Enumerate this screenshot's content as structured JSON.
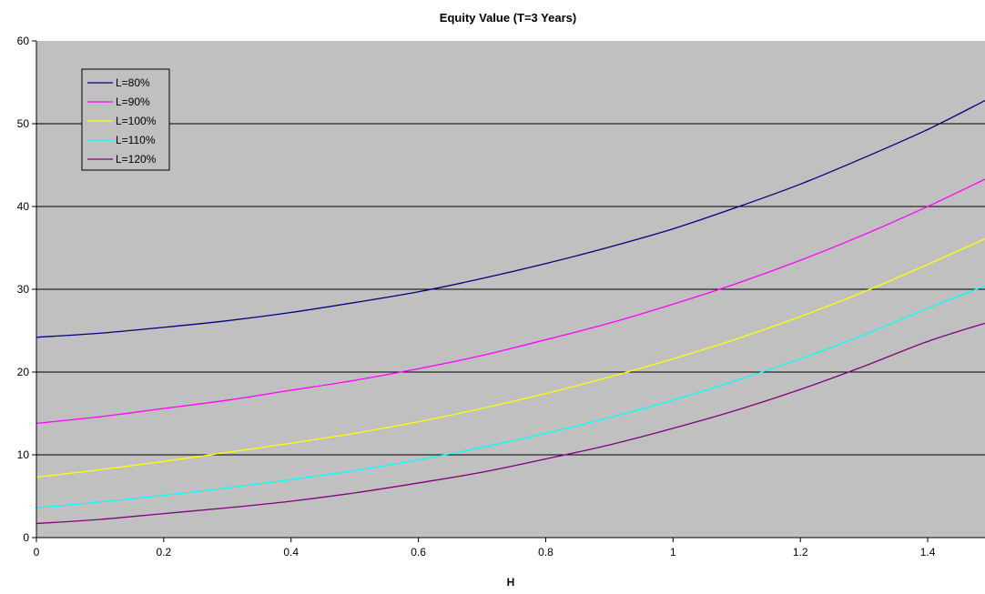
{
  "chart_data": {
    "type": "line",
    "title": "Equity Value (T=3 Years)",
    "xlabel": "H",
    "ylabel": "",
    "xlim": [
      0,
      1.49
    ],
    "ylim": [
      0,
      60
    ],
    "x_ticks": [
      "0",
      "0.2",
      "0.4",
      "0.6",
      "0.8",
      "1",
      "1.2",
      "1.4"
    ],
    "y_ticks": [
      "0",
      "10",
      "20",
      "30",
      "40",
      "50",
      "60"
    ],
    "grid": "horizontal",
    "legend_position": "top-left",
    "plot_background": "#c0c0c0",
    "x": [
      0,
      0.1,
      0.2,
      0.3,
      0.4,
      0.5,
      0.6,
      0.7,
      0.8,
      0.9,
      1.0,
      1.1,
      1.2,
      1.3,
      1.4,
      1.49
    ],
    "series": [
      {
        "name": "L=80%",
        "color": "#000080",
        "values": [
          24.2,
          24.7,
          25.4,
          26.2,
          27.2,
          28.4,
          29.7,
          31.3,
          33.1,
          35.1,
          37.3,
          39.9,
          42.7,
          45.9,
          49.3,
          52.8
        ]
      },
      {
        "name": "L=90%",
        "color": "#ff00ff",
        "values": [
          13.8,
          14.6,
          15.6,
          16.6,
          17.8,
          19.0,
          20.4,
          22.0,
          23.9,
          25.9,
          28.2,
          30.7,
          33.5,
          36.6,
          40.0,
          43.3
        ]
      },
      {
        "name": "L=100%",
        "color": "#ffff00",
        "values": [
          7.3,
          8.2,
          9.2,
          10.3,
          11.4,
          12.6,
          14.0,
          15.6,
          17.4,
          19.4,
          21.6,
          24.0,
          26.7,
          29.7,
          33.0,
          36.1
        ]
      },
      {
        "name": "L=110%",
        "color": "#00ffff",
        "values": [
          3.6,
          4.3,
          5.1,
          6.0,
          7.0,
          8.1,
          9.4,
          10.9,
          12.6,
          14.5,
          16.6,
          19.0,
          21.6,
          24.5,
          27.7,
          30.4
        ]
      },
      {
        "name": "L=120%",
        "color": "#800080",
        "values": [
          1.7,
          2.2,
          2.9,
          3.6,
          4.4,
          5.4,
          6.6,
          7.9,
          9.5,
          11.2,
          13.2,
          15.4,
          17.9,
          20.7,
          23.7,
          25.9
        ]
      }
    ]
  }
}
